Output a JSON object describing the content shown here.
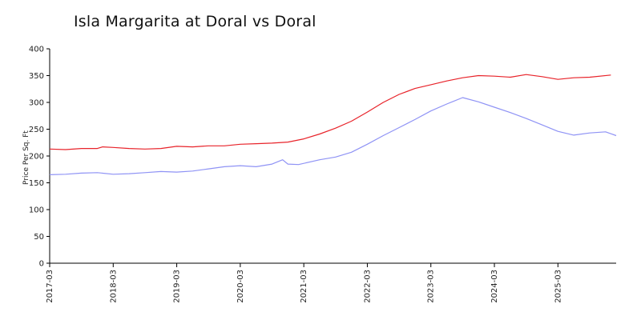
{
  "chart_data": {
    "type": "line",
    "title": "Isla Margarita at Doral vs Doral",
    "ylabel": "Price Per Sq. Ft",
    "xlabel": "",
    "ylim": [
      0,
      400
    ],
    "yticks": [
      0,
      50,
      100,
      150,
      200,
      250,
      300,
      350,
      400
    ],
    "xlim": [
      "2017-03",
      "2026-02"
    ],
    "xticks": [
      "2017-03",
      "2018-03",
      "2019-03",
      "2020-03",
      "2021-03",
      "2022-03",
      "2023-03",
      "2024-03",
      "2025-03"
    ],
    "grid": false,
    "legend": "none",
    "series": [
      {
        "color": "#e8232a",
        "points": [
          [
            "2017-03",
            213
          ],
          [
            "2017-06",
            212
          ],
          [
            "2017-09",
            214
          ],
          [
            "2017-12",
            214
          ],
          [
            "2018-01",
            217
          ],
          [
            "2018-03",
            216
          ],
          [
            "2018-06",
            214
          ],
          [
            "2018-09",
            213
          ],
          [
            "2018-12",
            214
          ],
          [
            "2019-03",
            218
          ],
          [
            "2019-06",
            217
          ],
          [
            "2019-09",
            219
          ],
          [
            "2019-12",
            219
          ],
          [
            "2020-03",
            222
          ],
          [
            "2020-06",
            223
          ],
          [
            "2020-09",
            224
          ],
          [
            "2020-12",
            226
          ],
          [
            "2021-03",
            232
          ],
          [
            "2021-06",
            241
          ],
          [
            "2021-09",
            252
          ],
          [
            "2021-12",
            265
          ],
          [
            "2022-03",
            282
          ],
          [
            "2022-06",
            300
          ],
          [
            "2022-09",
            315
          ],
          [
            "2022-12",
            326
          ],
          [
            "2023-03",
            333
          ],
          [
            "2023-06",
            340
          ],
          [
            "2023-09",
            346
          ],
          [
            "2023-12",
            350
          ],
          [
            "2024-03",
            349
          ],
          [
            "2024-06",
            347
          ],
          [
            "2024-09",
            352
          ],
          [
            "2024-12",
            348
          ],
          [
            "2025-03",
            343
          ],
          [
            "2025-06",
            346
          ],
          [
            "2025-09",
            347
          ],
          [
            "2026-01",
            351
          ]
        ]
      },
      {
        "color": "#8f93f5",
        "points": [
          [
            "2017-03",
            165
          ],
          [
            "2017-06",
            166
          ],
          [
            "2017-09",
            168
          ],
          [
            "2017-12",
            169
          ],
          [
            "2018-03",
            166
          ],
          [
            "2018-06",
            167
          ],
          [
            "2018-09",
            169
          ],
          [
            "2018-12",
            171
          ],
          [
            "2019-03",
            170
          ],
          [
            "2019-06",
            172
          ],
          [
            "2019-09",
            176
          ],
          [
            "2019-12",
            180
          ],
          [
            "2020-03",
            182
          ],
          [
            "2020-06",
            180
          ],
          [
            "2020-09",
            185
          ],
          [
            "2020-11",
            193
          ],
          [
            "2020-12",
            185
          ],
          [
            "2021-02",
            184
          ],
          [
            "2021-06",
            193
          ],
          [
            "2021-09",
            198
          ],
          [
            "2021-12",
            207
          ],
          [
            "2022-03",
            222
          ],
          [
            "2022-06",
            238
          ],
          [
            "2022-09",
            253
          ],
          [
            "2022-12",
            268
          ],
          [
            "2023-03",
            284
          ],
          [
            "2023-06",
            297
          ],
          [
            "2023-09",
            309
          ],
          [
            "2023-12",
            301
          ],
          [
            "2024-03",
            291
          ],
          [
            "2024-06",
            281
          ],
          [
            "2024-09",
            270
          ],
          [
            "2024-12",
            258
          ],
          [
            "2025-03",
            246
          ],
          [
            "2025-06",
            239
          ],
          [
            "2025-09",
            243
          ],
          [
            "2025-12",
            245
          ],
          [
            "2026-02",
            238
          ]
        ]
      }
    ]
  }
}
